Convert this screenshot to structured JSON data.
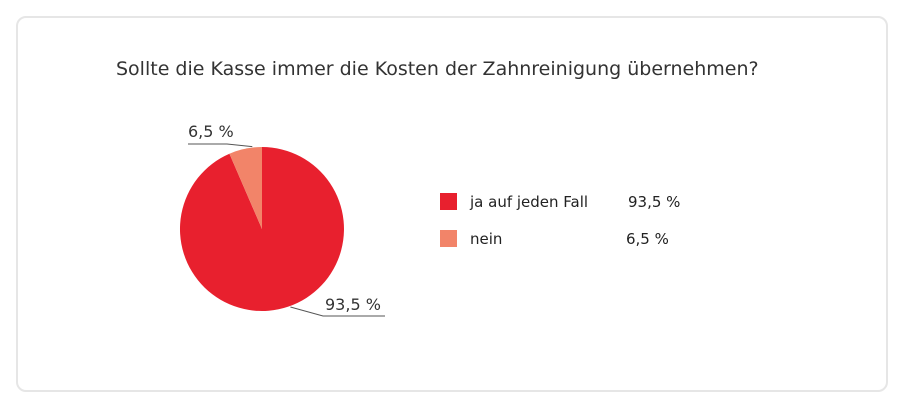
{
  "chart_data": {
    "type": "pie",
    "title": "Sollte die Kasse immer die Kosten der Zahnreinigung übernehmen?",
    "categories": [
      "ja auf jeden Fall",
      "nein"
    ],
    "values": [
      93.5,
      6.5
    ],
    "value_labels": [
      "93,5 %",
      "6,5 %"
    ],
    "colors": [
      "#e8202e",
      "#f28469"
    ],
    "legend_position": "right"
  }
}
